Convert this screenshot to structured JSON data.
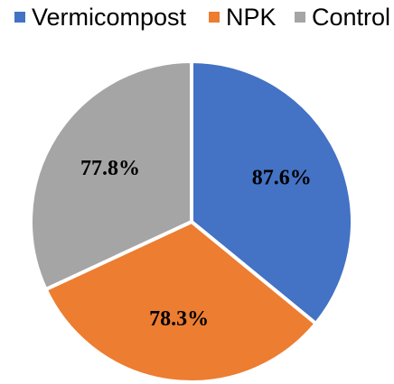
{
  "chart_data": {
    "type": "pie",
    "categories": [
      "Vermicompost",
      "NPK",
      "Control"
    ],
    "values": [
      87.6,
      78.3,
      77.8
    ],
    "labels": [
      "87.6%",
      "78.3%",
      "77.8%"
    ],
    "colors": [
      "#4472c4",
      "#ed7d31",
      "#a5a5a5"
    ],
    "start_angle": "12 o'clock",
    "direction": "clockwise",
    "legend_position": "top",
    "title": "",
    "border_color": "#ffffff"
  }
}
